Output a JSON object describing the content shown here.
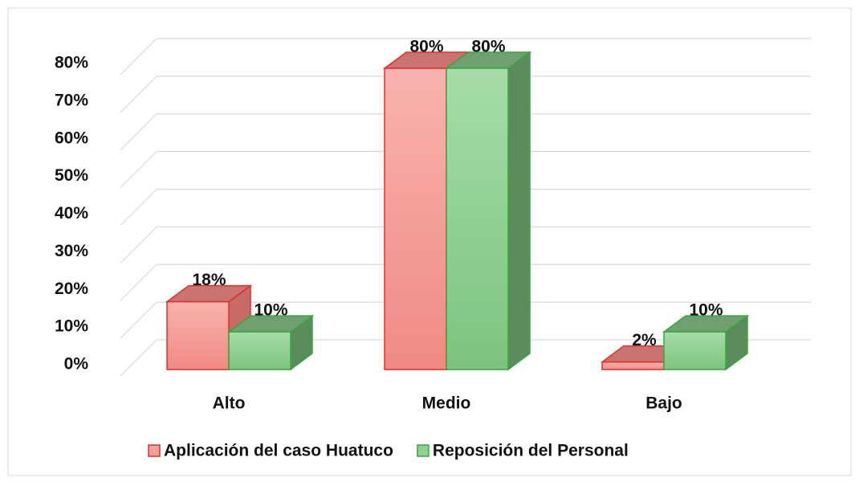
{
  "chart_data": {
    "type": "bar3d",
    "categories": [
      "Alto",
      "Medio",
      "Bajo"
    ],
    "series": [
      {
        "name": "Aplicación del caso Huatuco",
        "color": "#f4a09c",
        "values": [
          18,
          80,
          2
        ],
        "value_labels": [
          "18%",
          "80%",
          "2%"
        ]
      },
      {
        "name": "Reposición del Personal",
        "color": "#8fd193",
        "values": [
          10,
          80,
          10
        ],
        "value_labels": [
          "10%",
          "80%",
          "10%"
        ]
      }
    ],
    "ylim": [
      0,
      80
    ],
    "yticks": [
      {
        "value": 0,
        "label": "0%"
      },
      {
        "value": 10,
        "label": "10%"
      },
      {
        "value": 20,
        "label": "20%"
      },
      {
        "value": 30,
        "label": "30%"
      },
      {
        "value": 40,
        "label": "40%"
      },
      {
        "value": 50,
        "label": "50%"
      },
      {
        "value": 60,
        "label": "60%"
      },
      {
        "value": 70,
        "label": "70%"
      },
      {
        "value": 80,
        "label": "80%"
      }
    ],
    "grid": true,
    "legend": "bottom"
  }
}
